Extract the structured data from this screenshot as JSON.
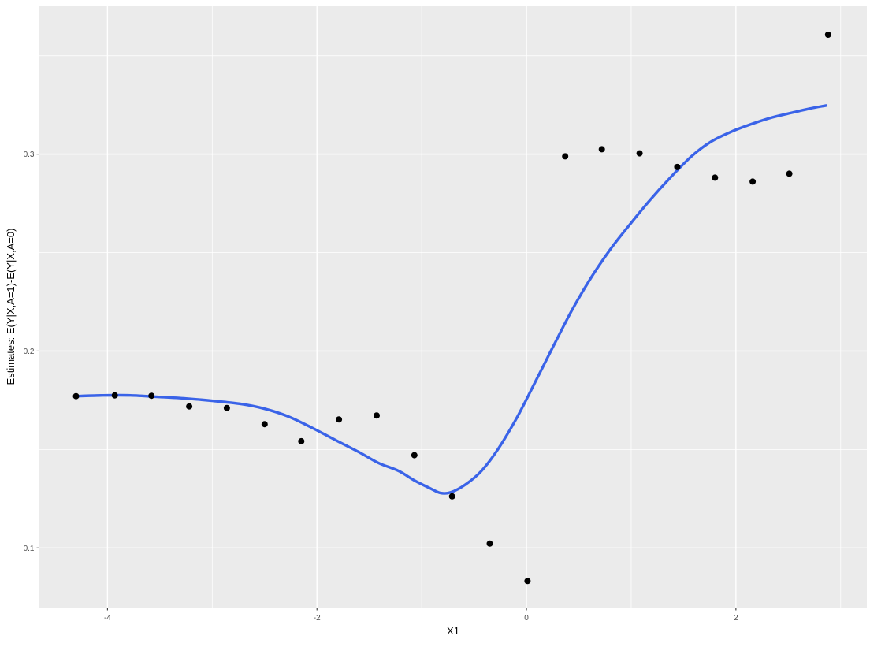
{
  "figure": {
    "title": "",
    "legend": "none"
  },
  "colors": {
    "outer_background": "#FFFFFF",
    "panel_background": "#EBEBEB",
    "grid": "#FFFFFF",
    "points": "#000000",
    "smooth_line": "#3A63E8",
    "tick_labels": "#4D4D4D",
    "tick_marks": "#333333",
    "axis_titles": "#000000"
  },
  "chart_data": {
    "type": "scatter",
    "title": "",
    "xlabel": "X1",
    "ylabel": "Estimates: E(Y|X,A=1)-E(Y|X,A=0)",
    "xlim": [
      -4.65,
      3.25
    ],
    "ylim": [
      0.0697,
      0.3755
    ],
    "grid": "ggplot theme_grey: white major and minor gridlines on grey panel",
    "legend_position": "none",
    "x_ticks": {
      "major": [
        -4,
        -2,
        0,
        2
      ],
      "minor": [
        -3,
        -1,
        1,
        3
      ],
      "labels": [
        "-4",
        "-2",
        "0",
        "2"
      ]
    },
    "y_ticks": {
      "major": [
        0.1,
        0.2,
        0.3
      ],
      "minor": [
        0.15,
        0.25,
        0.35
      ],
      "labels": [
        "0.1",
        "0.2",
        "0.3"
      ]
    },
    "series": [
      {
        "name": "estimate-points",
        "type": "scatter",
        "color": "#000000",
        "points": [
          [
            -4.3,
            0.1771
          ],
          [
            -3.93,
            0.1775
          ],
          [
            -3.58,
            0.1773
          ],
          [
            -3.22,
            0.1719
          ],
          [
            -2.86,
            0.1711
          ],
          [
            -2.5,
            0.1629
          ],
          [
            -2.15,
            0.1542
          ],
          [
            -1.79,
            0.1653
          ],
          [
            -1.43,
            0.1673
          ],
          [
            -1.07,
            0.1471
          ],
          [
            -0.71,
            0.1262
          ],
          [
            -0.35,
            0.1022
          ],
          [
            0.01,
            0.0832
          ],
          [
            0.37,
            0.2989
          ],
          [
            0.72,
            0.3025
          ],
          [
            1.08,
            0.3004
          ],
          [
            1.44,
            0.2935
          ],
          [
            1.8,
            0.2881
          ],
          [
            2.16,
            0.2861
          ],
          [
            2.51,
            0.2901
          ],
          [
            2.88,
            0.3607
          ]
        ]
      },
      {
        "name": "smooth-fit-line",
        "type": "line",
        "color": "#3A63E8",
        "points": [
          [
            -4.29,
            0.1771
          ],
          [
            -4.04,
            0.1775
          ],
          [
            -3.78,
            0.1775
          ],
          [
            -3.51,
            0.1767
          ],
          [
            -3.25,
            0.1759
          ],
          [
            -2.99,
            0.1747
          ],
          [
            -2.72,
            0.1731
          ],
          [
            -2.5,
            0.1707
          ],
          [
            -2.27,
            0.1667
          ],
          [
            -2.05,
            0.1611
          ],
          [
            -1.82,
            0.1547
          ],
          [
            -1.6,
            0.1487
          ],
          [
            -1.41,
            0.1431
          ],
          [
            -1.22,
            0.1391
          ],
          [
            -1.07,
            0.1343
          ],
          [
            -0.92,
            0.1303
          ],
          [
            -0.82,
            0.1279
          ],
          [
            -0.72,
            0.1283
          ],
          [
            -0.58,
            0.1323
          ],
          [
            -0.43,
            0.1391
          ],
          [
            -0.27,
            0.1503
          ],
          [
            -0.09,
            0.1663
          ],
          [
            0.08,
            0.1839
          ],
          [
            0.24,
            0.2007
          ],
          [
            0.43,
            0.2203
          ],
          [
            0.62,
            0.2375
          ],
          [
            0.81,
            0.2523
          ],
          [
            1.0,
            0.2651
          ],
          [
            1.18,
            0.2767
          ],
          [
            1.37,
            0.2879
          ],
          [
            1.58,
            0.2991
          ],
          [
            1.76,
            0.3063
          ],
          [
            1.96,
            0.3115
          ],
          [
            2.16,
            0.3155
          ],
          [
            2.35,
            0.3187
          ],
          [
            2.54,
            0.3211
          ],
          [
            2.7,
            0.3231
          ],
          [
            2.86,
            0.3247
          ]
        ]
      }
    ]
  }
}
